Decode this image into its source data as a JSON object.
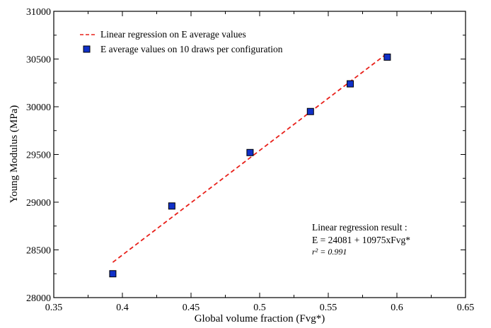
{
  "chart_data": {
    "type": "scatter",
    "title": "",
    "xlabel": "Global volume fraction (Fvg*)",
    "ylabel": "Young Modulus (MPa)",
    "xlim": [
      0.35,
      0.65
    ],
    "ylim": [
      28000,
      31000
    ],
    "x_ticks": [
      0.35,
      0.4,
      0.45,
      0.5,
      0.55,
      0.6,
      0.65
    ],
    "x_tick_labels": [
      "0.35",
      "0.4",
      "0.45",
      "0.5",
      "0.55",
      "0.6",
      "0.65"
    ],
    "y_ticks": [
      28000,
      28500,
      29000,
      29500,
      30000,
      30500,
      31000
    ],
    "y_tick_labels": [
      "28000",
      "28500",
      "29000",
      "29500",
      "30000",
      "30500",
      "31000"
    ],
    "grid": false,
    "legend_position": "top-left",
    "series": [
      {
        "name": "E average values on 10 draws per configuration",
        "kind": "points",
        "marker": "square",
        "color": "#1030c8",
        "x": [
          0.393,
          0.436,
          0.493,
          0.537,
          0.566,
          0.593
        ],
        "y": [
          28250,
          28960,
          29520,
          29950,
          30240,
          30520
        ]
      },
      {
        "name": "Linear regression on E average values",
        "kind": "line",
        "style": "dashed",
        "color": "#e8201a",
        "x": [
          0.393,
          0.593
        ],
        "y": [
          28370,
          30560
        ]
      }
    ],
    "annotations": {
      "line1": "Linear regression result :",
      "line2": "E = 24081 + 10975xFvg*",
      "line3": "r² = 0.991"
    }
  }
}
